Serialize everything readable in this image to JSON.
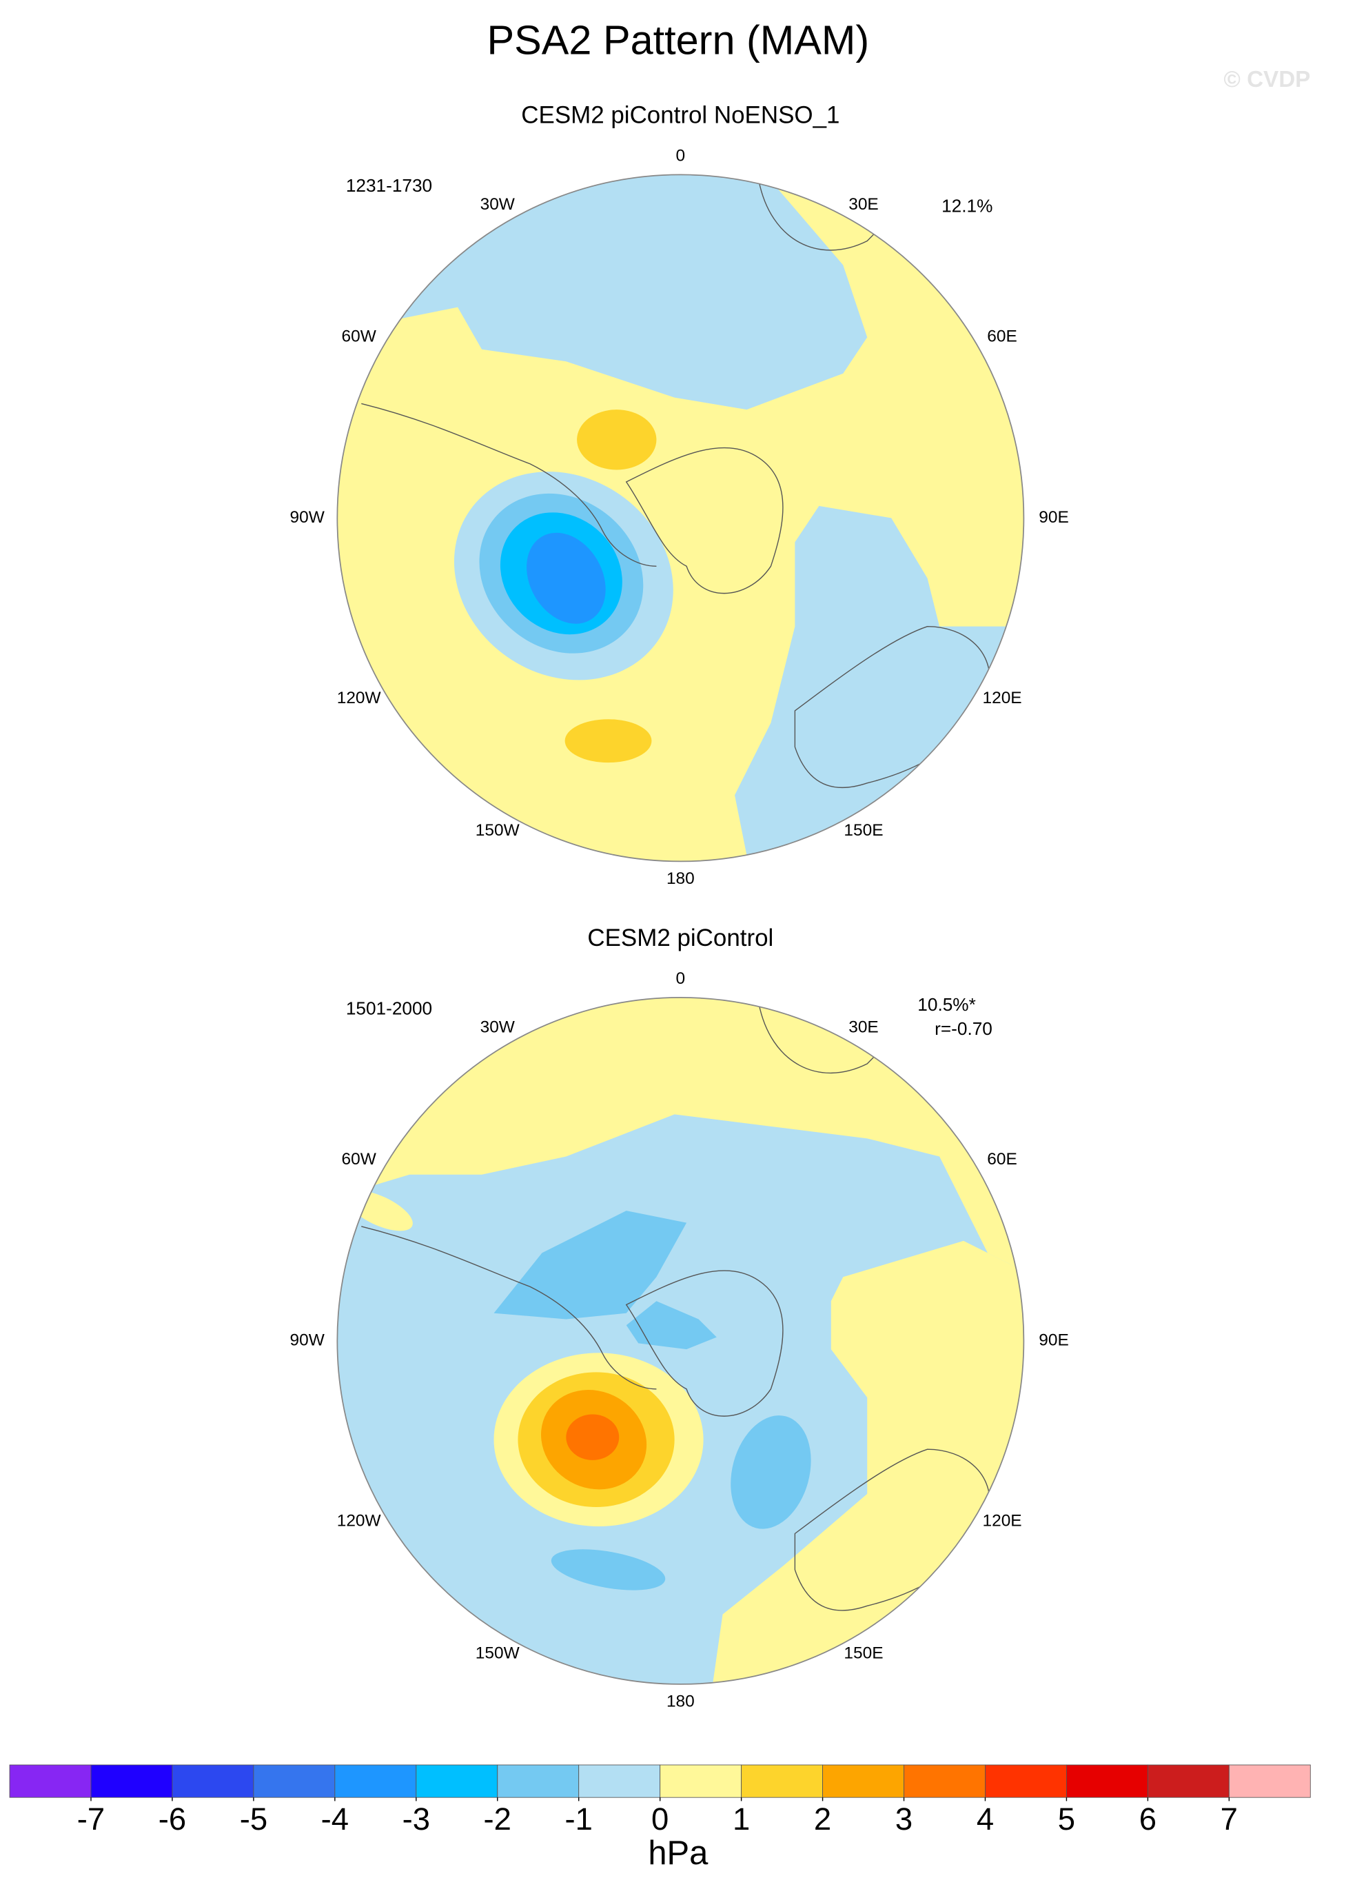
{
  "title": "PSA2 Pattern (MAM)",
  "watermark": "© CVDP",
  "panels": [
    {
      "title": "CESM2 piControl NoENSO_1",
      "period": "1231-1730",
      "percent": "12.1%",
      "lon_labels": [
        "0",
        "30E",
        "60E",
        "90E",
        "120E",
        "150E",
        "180",
        "150W",
        "120W",
        "90W",
        "60W",
        "30W"
      ]
    },
    {
      "title": "CESM2 piControl",
      "period": "1501-2000",
      "percent": "10.5%*",
      "corr": "r=-0.70",
      "lon_labels": [
        "0",
        "30E",
        "60E",
        "90E",
        "120E",
        "150E",
        "180",
        "150W",
        "120W",
        "90W",
        "60W",
        "30W"
      ]
    }
  ],
  "colorbar": {
    "label": "hPa",
    "colors": [
      "#8726f3",
      "#1f00ff",
      "#2c48f0",
      "#3575ee",
      "#1e96ff",
      "#00bfff",
      "#74c9f2",
      "#b3dff3",
      "#fff899",
      "#fdd42c",
      "#fda500",
      "#ff7400",
      "#ff3300",
      "#e60000",
      "#cc1d1d",
      "#ffb3b3"
    ],
    "ticks": [
      -7,
      -6,
      -5,
      -4,
      -3,
      -2,
      -1,
      0,
      1,
      2,
      3,
      4,
      5,
      6,
      7
    ]
  }
}
